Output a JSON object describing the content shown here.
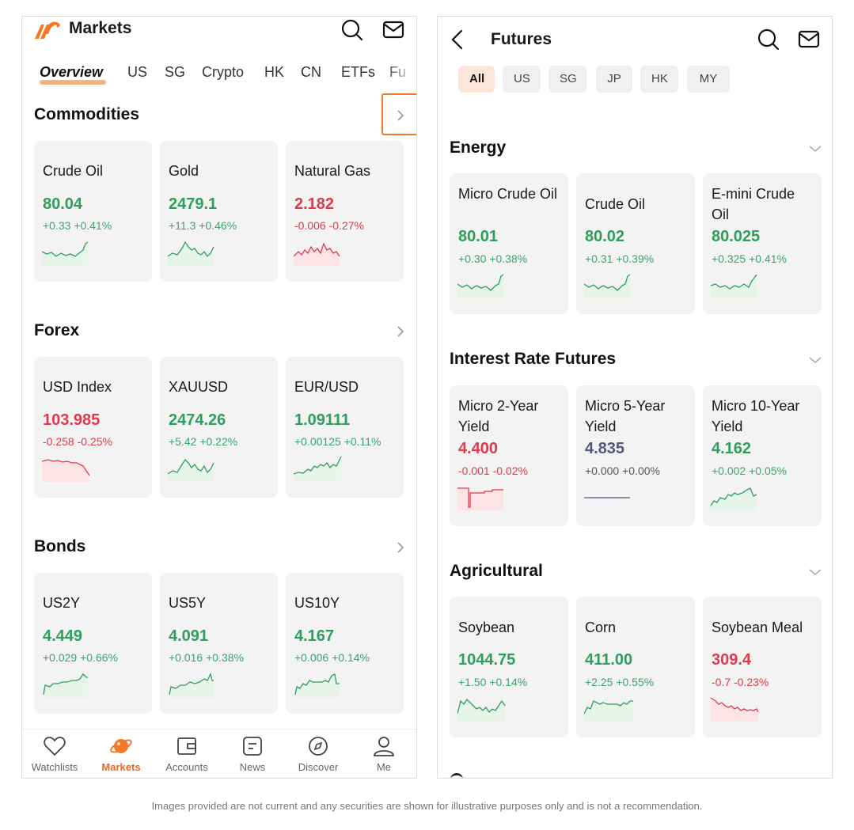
{
  "left": {
    "title": "Markets",
    "tabs": [
      "Overview",
      "US",
      "SG",
      "Crypto",
      "HK",
      "CN",
      "ETFs",
      "Fu"
    ],
    "sections": [
      {
        "title": "Commodities",
        "cards": [
          {
            "name": "Crude Oil",
            "price": "80.04",
            "change": "+0.33 +0.41%",
            "trend": "up"
          },
          {
            "name": "Gold",
            "price": "2479.1",
            "change": "+11.3 +0.46%",
            "trend": "up"
          },
          {
            "name": "Natural Gas",
            "price": "2.182",
            "change": "-0.006 -0.27%",
            "trend": "down"
          }
        ]
      },
      {
        "title": "Forex",
        "cards": [
          {
            "name": "USD Index",
            "price": "103.985",
            "change": "-0.258 -0.25%",
            "trend": "down"
          },
          {
            "name": "XAUUSD",
            "price": "2474.26",
            "change": "+5.42 +0.22%",
            "trend": "up"
          },
          {
            "name": "EUR/USD",
            "price": "1.09111",
            "change": "+0.00125 +0.11%",
            "trend": "up"
          }
        ]
      },
      {
        "title": "Bonds",
        "cards": [
          {
            "name": "US2Y",
            "price": "4.449",
            "change": "+0.029 +0.66%",
            "trend": "up"
          },
          {
            "name": "US5Y",
            "price": "4.091",
            "change": "+0.016 +0.38%",
            "trend": "up"
          },
          {
            "name": "US10Y",
            "price": "4.167",
            "change": "+0.006 +0.14%",
            "trend": "up"
          }
        ]
      }
    ],
    "nav": [
      {
        "label": "Watchlists",
        "icon": "heart-icon"
      },
      {
        "label": "Markets",
        "icon": "planet-icon"
      },
      {
        "label": "Accounts",
        "icon": "wallet-icon"
      },
      {
        "label": "News",
        "icon": "news-icon"
      },
      {
        "label": "Discover",
        "icon": "compass-icon"
      },
      {
        "label": "Me",
        "icon": "person-icon"
      }
    ],
    "active_nav": "Markets"
  },
  "right": {
    "title": "Futures",
    "chips": [
      "All",
      "US",
      "SG",
      "JP",
      "HK",
      "MY"
    ],
    "sections": [
      {
        "title": "Energy",
        "cards": [
          {
            "name": "Micro Crude Oil",
            "price": "80.01",
            "change": "+0.30 +0.38%",
            "trend": "up"
          },
          {
            "name": "Crude Oil",
            "price": "80.02",
            "change": "+0.31 +0.39%",
            "trend": "up"
          },
          {
            "name": "E-mini Crude Oil",
            "price": "80.025",
            "change": "+0.325 +0.41%",
            "trend": "up"
          }
        ]
      },
      {
        "title": "Interest Rate Futures",
        "cards": [
          {
            "name": "Micro 2-Year Yield",
            "price": "4.400",
            "change": "-0.001 -0.02%",
            "trend": "down"
          },
          {
            "name": "Micro 5-Year Yield",
            "price": "4.835",
            "change": "+0.000 +0.00%",
            "trend": "flat"
          },
          {
            "name": "Micro 10-Year Yield",
            "price": "4.162",
            "change": "+0.002 +0.05%",
            "trend": "up"
          }
        ]
      },
      {
        "title": "Agricultural",
        "cards": [
          {
            "name": "Soybean",
            "price": "1044.75",
            "change": "+1.50 +0.14%",
            "trend": "up"
          },
          {
            "name": "Corn",
            "price": "411.00",
            "change": "+2.25 +0.55%",
            "trend": "up"
          },
          {
            "name": "Soybean Meal",
            "price": "309.4",
            "change": "-0.7 -0.23%",
            "trend": "down"
          }
        ]
      }
    ]
  },
  "disclaimer": "Images provided are not current and any securities are shown for illustrative purposes only and is not a recommendation.",
  "colors": {
    "accent": "#f07a2a",
    "up": "#2e9e5b",
    "down": "#dd3a4b",
    "flat": "#4f5a7a",
    "card_bg": "#f3f3f4"
  }
}
